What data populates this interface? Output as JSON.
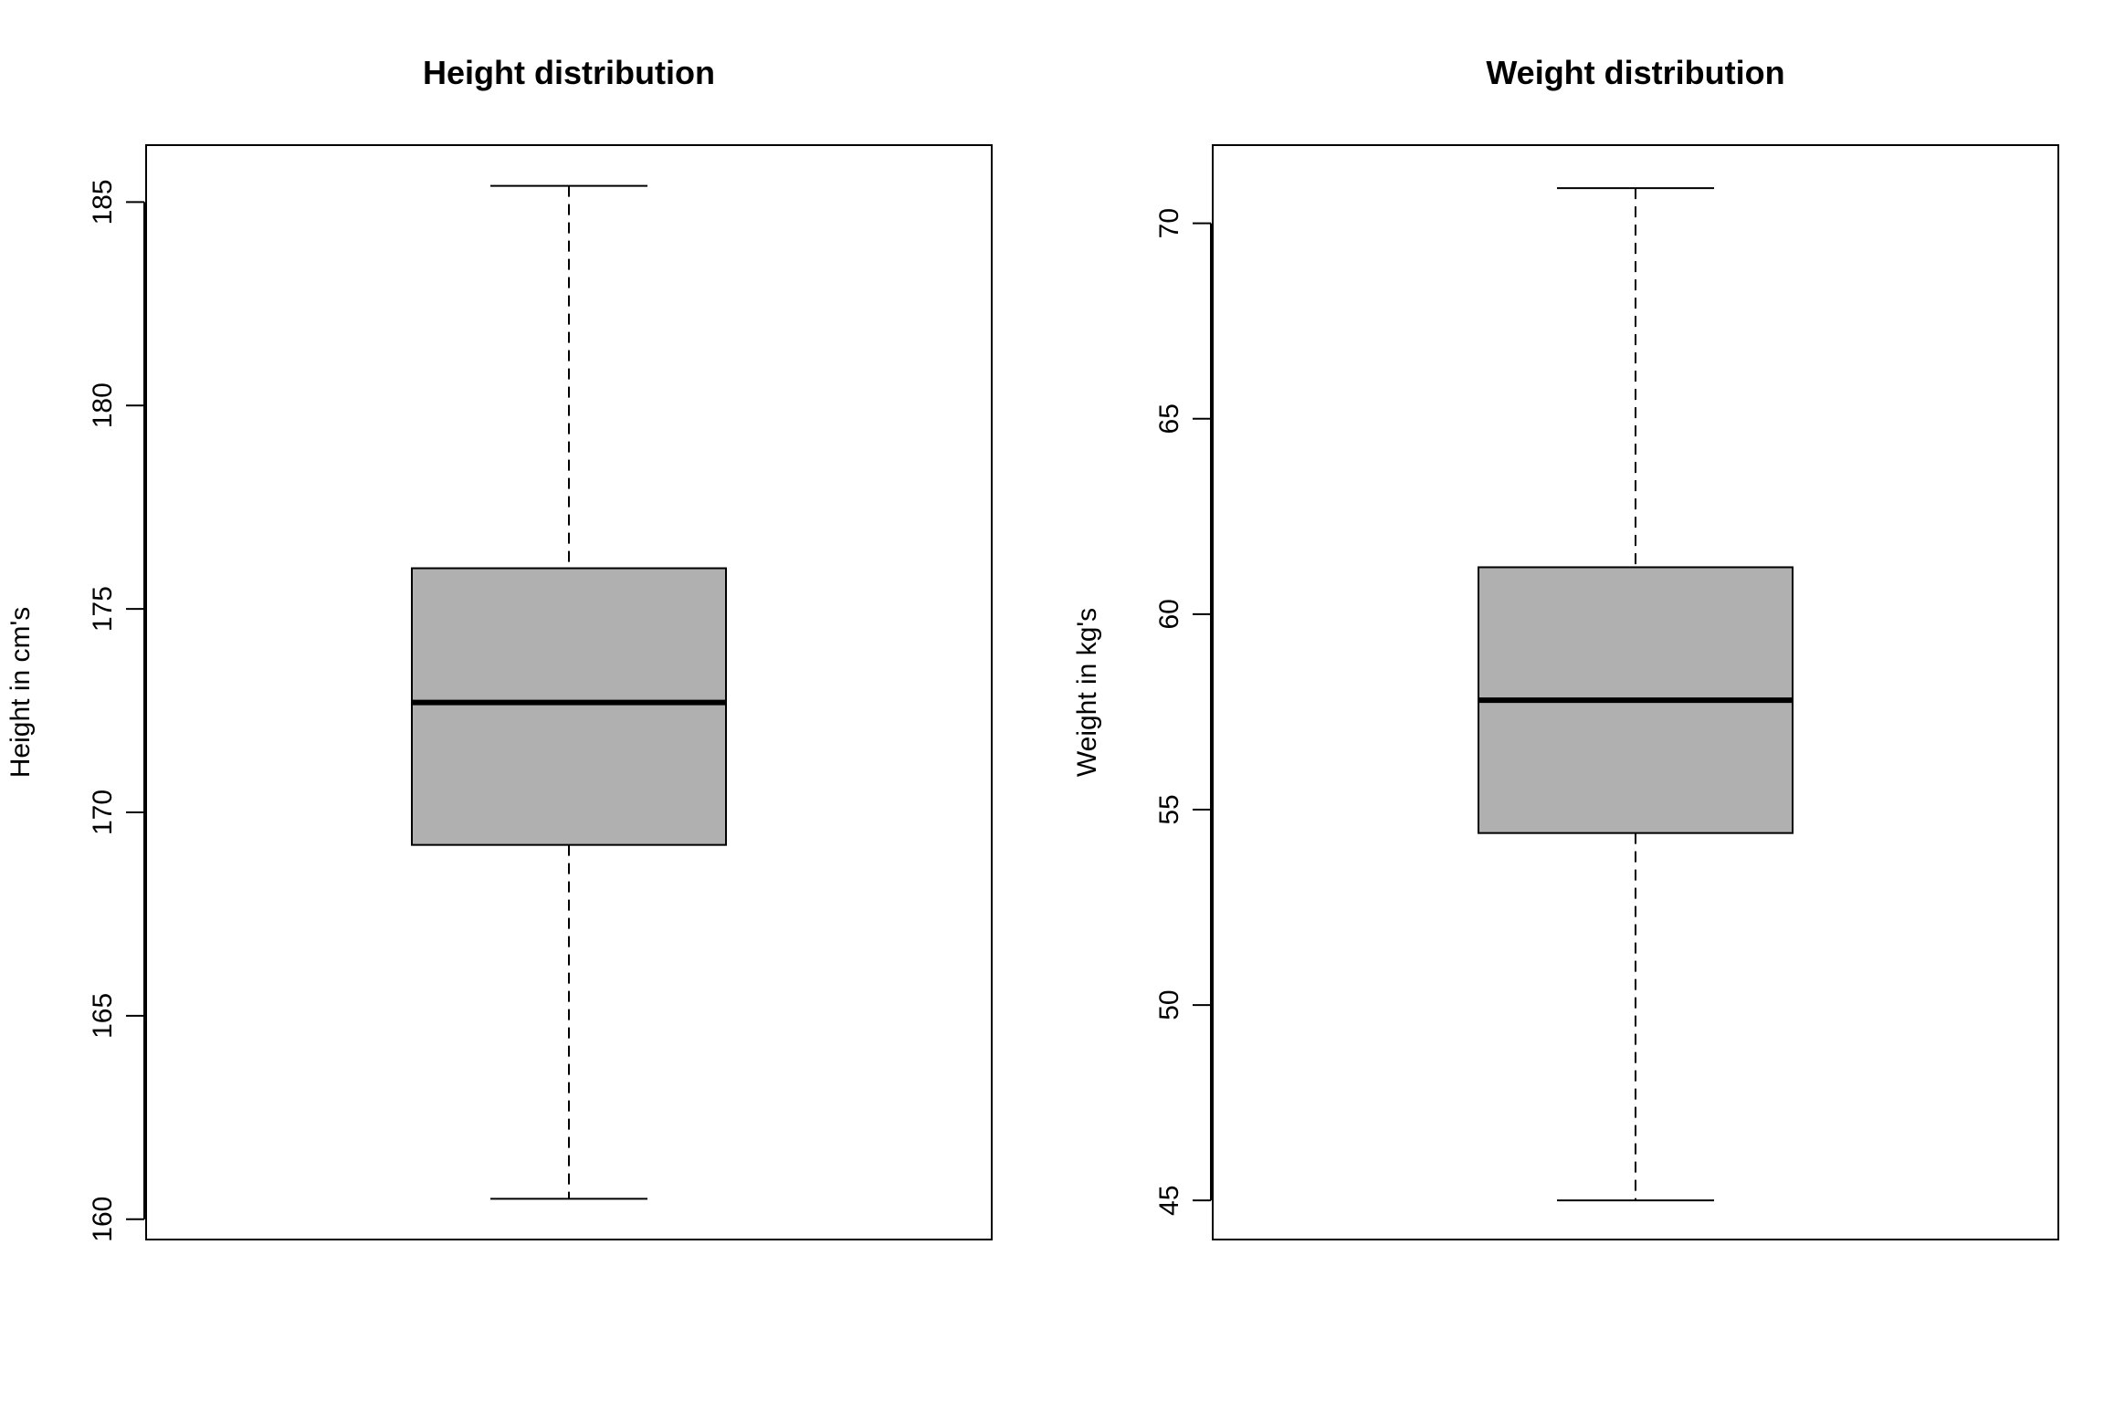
{
  "chart_data": [
    {
      "type": "box",
      "title": "Height distribution",
      "ylabel": "Height in cm's",
      "xlabel": "",
      "ylim": [
        159.5,
        186.4
      ],
      "yticks": [
        160,
        165,
        170,
        175,
        180,
        185
      ],
      "grid": false,
      "box": {
        "min": 160.5,
        "q1": 169.2,
        "median": 172.7,
        "q3": 176.0,
        "max": 185.4
      },
      "fill_color": "#b0b0b0",
      "line_color": "#000000"
    },
    {
      "type": "box",
      "title": "Weight distribution",
      "ylabel": "Weight in kg's",
      "xlabel": "",
      "ylim": [
        44.0,
        72.0
      ],
      "yticks": [
        45,
        50,
        55,
        60,
        65,
        70
      ],
      "grid": false,
      "box": {
        "min": 45.0,
        "q1": 54.4,
        "median": 57.8,
        "q3": 61.2,
        "max": 70.9
      },
      "fill_color": "#b0b0b0",
      "line_color": "#000000"
    }
  ]
}
